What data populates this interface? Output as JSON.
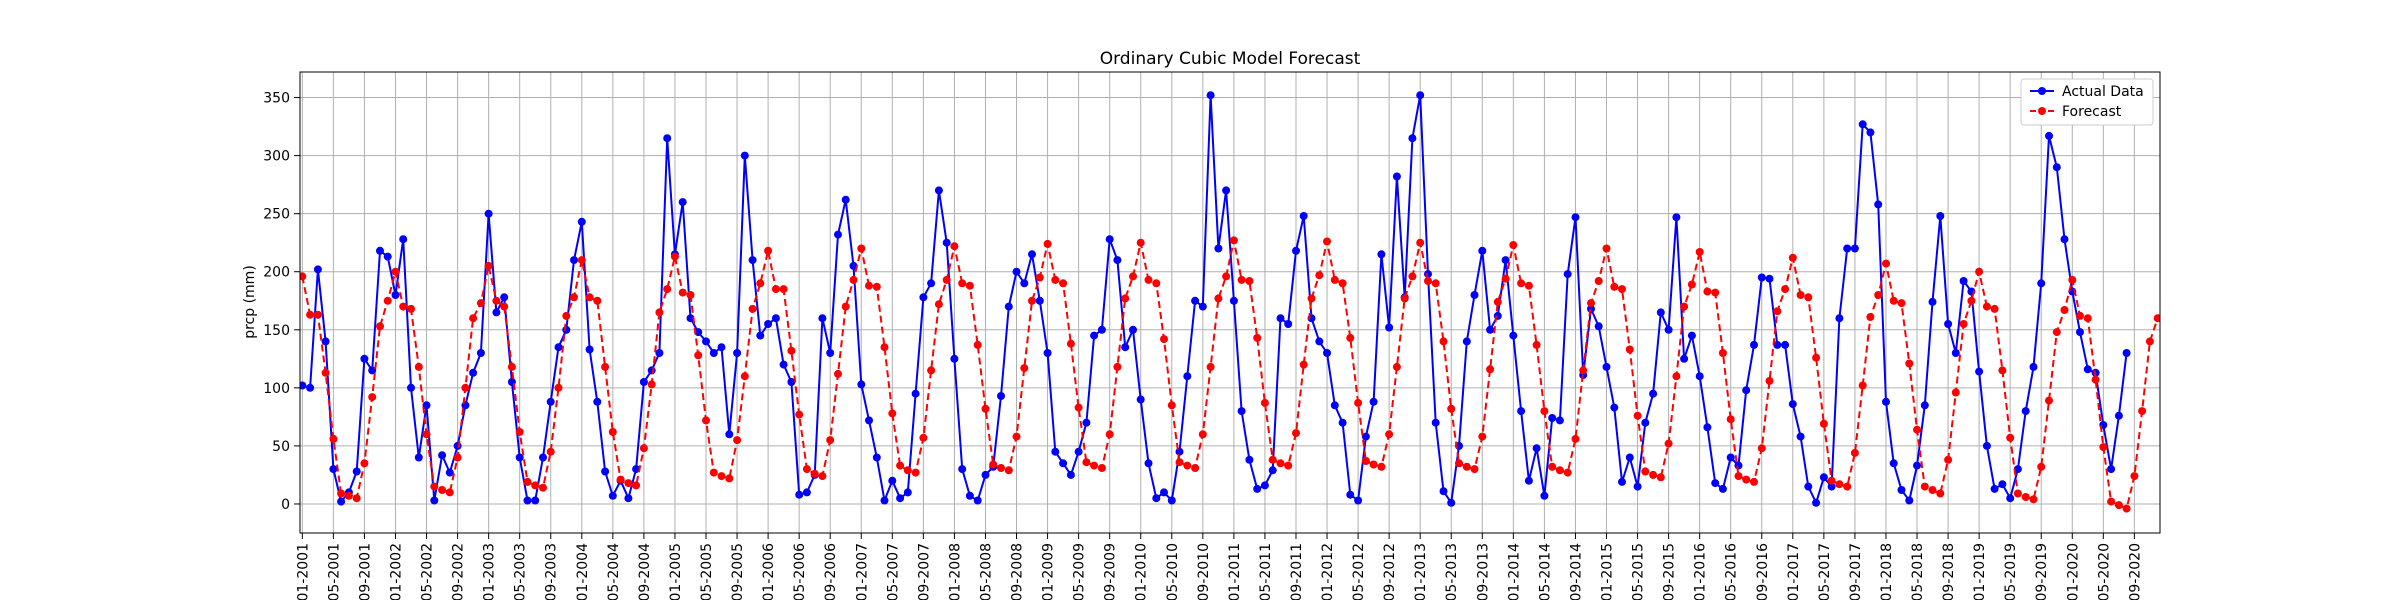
{
  "chart_data": {
    "type": "line",
    "title": "Ordinary Cubic Model Forecast",
    "xlabel": "",
    "ylabel": "prcp (mm)",
    "ylim": [
      -25,
      372
    ],
    "yticks": [
      0,
      50,
      100,
      150,
      200,
      250,
      300,
      350
    ],
    "grid": true,
    "legend_position": "top-right",
    "x_tick_labels": [
      "01-2001",
      "05-2001",
      "09-2001",
      "01-2002",
      "05-2002",
      "09-2002",
      "01-2003",
      "05-2003",
      "09-2003",
      "01-2004",
      "05-2004",
      "09-2004",
      "01-2005",
      "05-2005",
      "09-2005",
      "01-2006",
      "05-2006",
      "09-2006",
      "01-2007",
      "05-2007",
      "09-2007",
      "01-2008",
      "05-2008",
      "09-2008",
      "01-2009",
      "05-2009",
      "09-2009",
      "01-2010",
      "05-2010",
      "09-2010",
      "01-2011",
      "05-2011",
      "09-2011",
      "01-2012",
      "05-2012",
      "09-2012",
      "01-2013",
      "05-2013",
      "09-2013",
      "01-2014",
      "05-2014",
      "09-2014",
      "01-2015",
      "05-2015",
      "09-2015",
      "01-2016",
      "05-2016",
      "09-2016",
      "01-2017",
      "05-2017",
      "09-2017",
      "01-2018",
      "05-2018",
      "09-2018",
      "01-2019",
      "05-2019",
      "09-2019",
      "01-2020",
      "05-2020",
      "09-2020"
    ],
    "start_month": "01-2001",
    "series": [
      {
        "name": "Actual Data",
        "color": "#0000ff",
        "style": "solid",
        "values": [
          102,
          100,
          202,
          140,
          30,
          2,
          10,
          28,
          125,
          115,
          218,
          213,
          180,
          228,
          100,
          40,
          85,
          3,
          42,
          27,
          50,
          85,
          113,
          130,
          250,
          165,
          178,
          105,
          40,
          3,
          3,
          40,
          88,
          135,
          150,
          210,
          243,
          133,
          88,
          28,
          7,
          20,
          5,
          30,
          105,
          115,
          130,
          315,
          215,
          260,
          160,
          148,
          140,
          130,
          135,
          60,
          130,
          300,
          210,
          145,
          155,
          160,
          120,
          105,
          8,
          10,
          25,
          160,
          130,
          232,
          262,
          205,
          103,
          72,
          40,
          3,
          20,
          5,
          10,
          95,
          178,
          190,
          270,
          225,
          125,
          30,
          7,
          3,
          25,
          32,
          93,
          170,
          200,
          190,
          215,
          175,
          130,
          45,
          35,
          25,
          45,
          70,
          145,
          150,
          228,
          210,
          135,
          150,
          90,
          35,
          5,
          10,
          3,
          45,
          110,
          175,
          170,
          352,
          220,
          270,
          175,
          80,
          38,
          13,
          16,
          29,
          160,
          155,
          218,
          248,
          160,
          140,
          130,
          85,
          70,
          8,
          3,
          58,
          88,
          215,
          152,
          282,
          178,
          315,
          352,
          198,
          70,
          11,
          1,
          50,
          140,
          180,
          218,
          150,
          162,
          210,
          145,
          80,
          20,
          48,
          7,
          74,
          72,
          198,
          247,
          111,
          168,
          153,
          118,
          83,
          19,
          40,
          15,
          70,
          95,
          165,
          150,
          247,
          125,
          145,
          110,
          66,
          18,
          13,
          40,
          33,
          98,
          137,
          195,
          194,
          137,
          137,
          86,
          58,
          15,
          1,
          23,
          15,
          160,
          220,
          220,
          327,
          320,
          258,
          88,
          35,
          12,
          3,
          33,
          85,
          174,
          248,
          155,
          130,
          192,
          183,
          114,
          50,
          13,
          17,
          5,
          30,
          80,
          118,
          190,
          317,
          290,
          228,
          183,
          148,
          116,
          113,
          68,
          30,
          76,
          130
        ],
        "values_note": ""
      },
      {
        "name": "Forecast",
        "color": "#ff0000",
        "style": "dashed",
        "values": [
          196,
          163,
          163,
          113,
          56,
          9,
          7,
          5,
          35,
          92,
          153,
          175,
          200,
          170,
          168,
          118,
          60,
          15,
          12,
          10,
          40,
          100,
          160,
          173,
          205,
          175,
          170,
          118,
          62,
          19,
          16,
          14,
          45,
          100,
          162,
          178,
          210,
          178,
          175,
          118,
          62,
          21,
          18,
          16,
          48,
          103,
          165,
          185,
          213,
          182,
          180,
          128,
          72,
          27,
          24,
          22,
          55,
          110,
          168,
          190,
          218,
          185,
          185,
          132,
          77,
          30,
          26,
          24,
          55,
          112,
          170,
          193,
          220,
          188,
          187,
          135,
          78,
          33,
          29,
          27,
          57,
          115,
          172,
          193,
          222,
          190,
          188,
          137,
          82,
          34,
          31,
          29,
          58,
          117,
          175,
          195,
          224,
          193,
          190,
          138,
          83,
          36,
          33,
          31,
          60,
          118,
          177,
          196,
          225,
          193,
          190,
          142,
          85,
          36,
          33,
          31,
          60,
          118,
          177,
          196,
          227,
          193,
          192,
          143,
          87,
          38,
          35,
          33,
          61,
          120,
          177,
          197,
          226,
          193,
          190,
          143,
          87,
          37,
          34,
          32,
          60,
          118,
          177,
          196,
          225,
          192,
          190,
          140,
          82,
          35,
          32,
          30,
          58,
          116,
          174,
          194,
          223,
          190,
          188,
          137,
          80,
          32,
          29,
          27,
          56,
          115,
          173,
          192,
          220,
          187,
          185,
          133,
          76,
          28,
          25,
          23,
          52,
          110,
          170,
          189,
          217,
          183,
          182,
          130,
          73,
          24,
          21,
          19,
          48,
          106,
          166,
          185,
          212,
          180,
          178,
          126,
          69,
          20,
          17,
          15,
          44,
          102,
          161,
          180,
          207,
          175,
          173,
          121,
          64,
          15,
          12,
          9,
          38,
          96,
          155,
          175,
          200,
          170,
          168,
          115,
          57,
          9,
          6,
          4,
          32,
          89,
          148,
          167,
          193,
          162,
          160,
          107,
          49,
          2,
          -1,
          -4,
          24,
          80,
          140,
          160
        ]
      }
    ]
  }
}
